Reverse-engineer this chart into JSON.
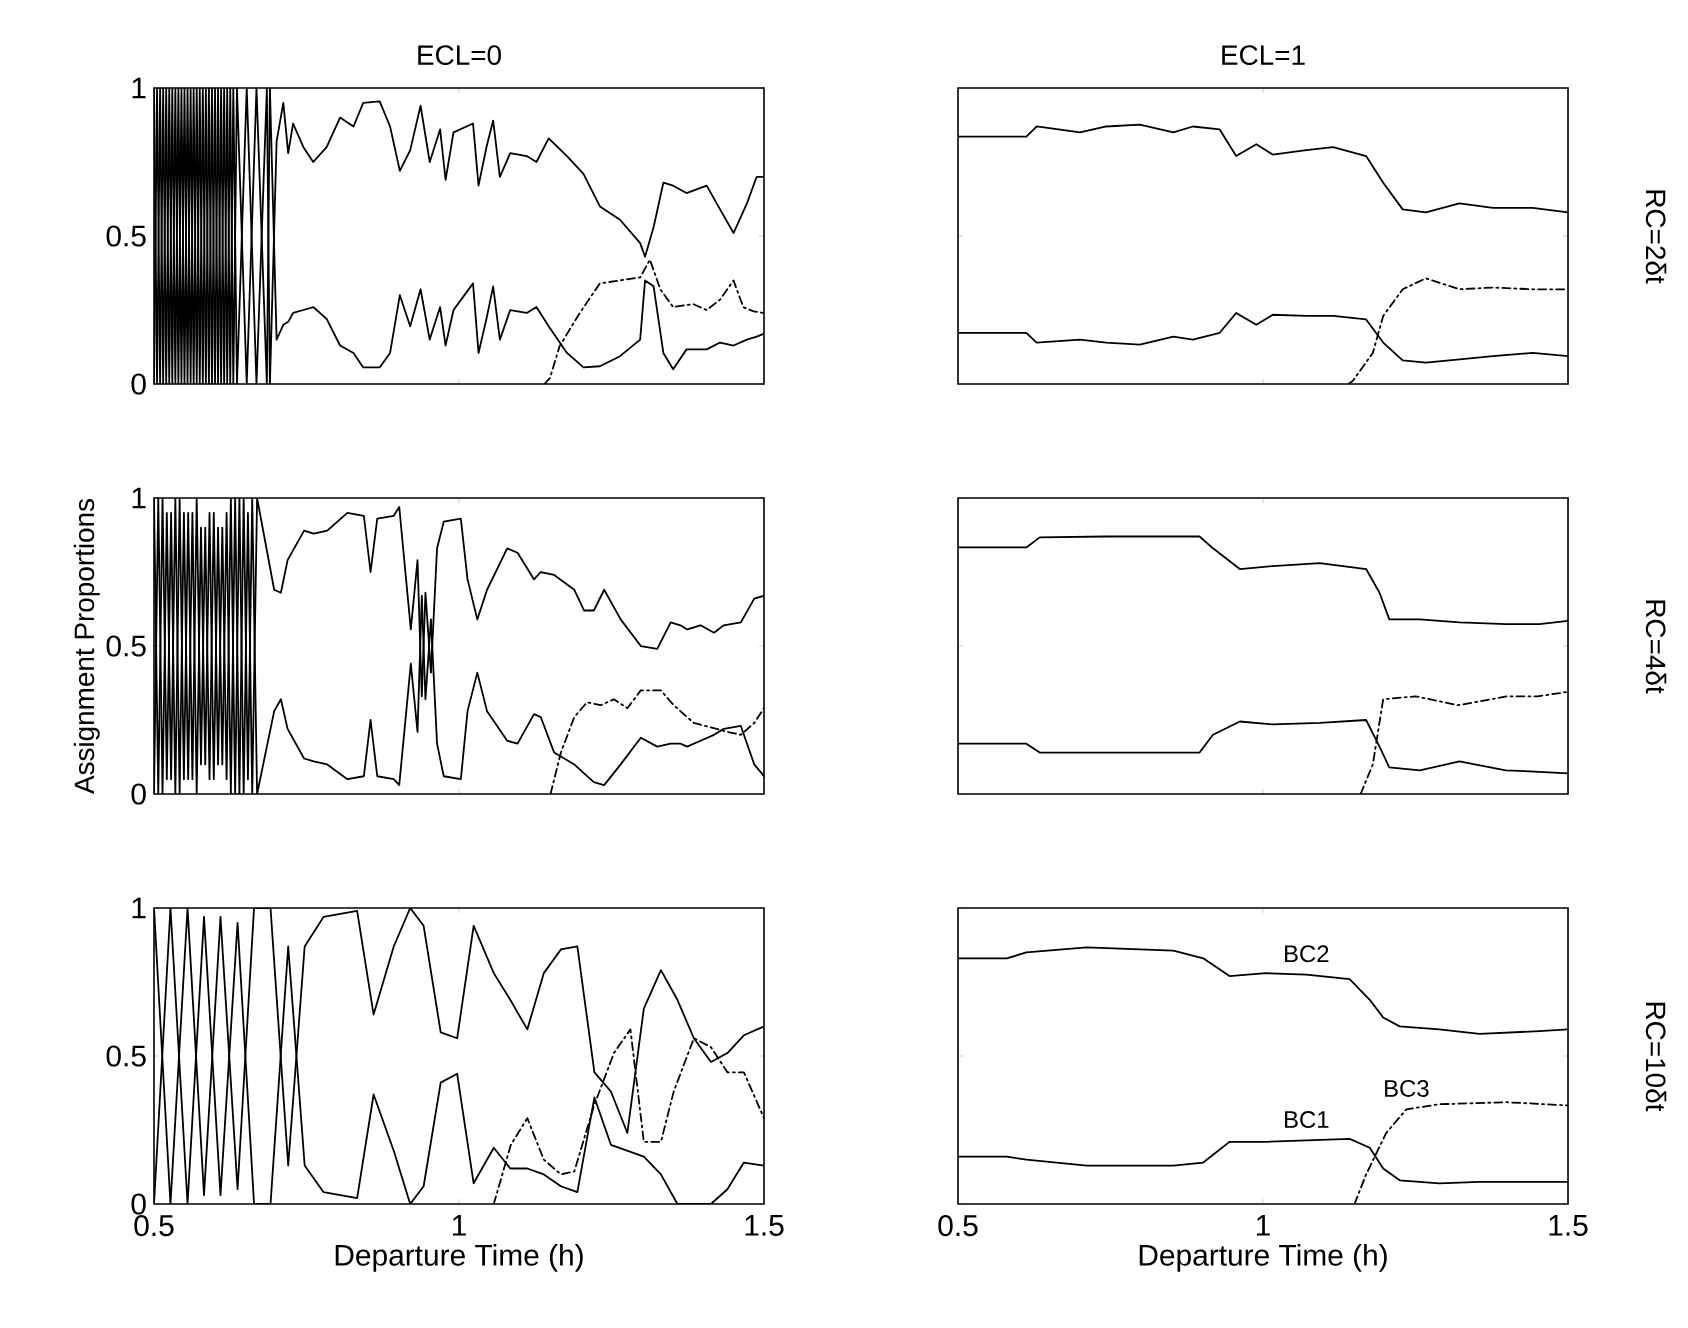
{
  "chart_data": [
    {
      "type": "line",
      "title": "ECL=0",
      "xlim": [
        0.5,
        1.5
      ],
      "ylim": [
        0,
        1
      ],
      "xticks": [
        0.5,
        1,
        1.5
      ],
      "yticks": [
        0,
        0.5,
        1
      ],
      "tick_labels": "y",
      "series": [
        {
          "color": "#000000",
          "line_style": "solid",
          "x": [
            0.5,
            0.505,
            0.51,
            0.515,
            0.52,
            0.525,
            0.53,
            0.535,
            0.54,
            0.545,
            0.55,
            0.555,
            0.56,
            0.565,
            0.57,
            0.575,
            0.58,
            0.585,
            0.59,
            0.595,
            0.6,
            0.605,
            0.61,
            0.615,
            0.62,
            0.625,
            0.63,
            0.636,
            0.652,
            0.668,
            0.685,
            0.69,
            0.701,
            0.712,
            0.72,
            0.728,
            0.745,
            0.761,
            0.783,
            0.805,
            0.827,
            0.843,
            0.87,
            0.887,
            0.903,
            0.92,
            0.937,
            0.952,
            0.969,
            0.978,
            0.991,
            1.023,
            1.032,
            1.045,
            1.056,
            1.067,
            1.084,
            1.111,
            1.127,
            1.147,
            1.177,
            1.204,
            1.231,
            1.264,
            1.297,
            1.305,
            1.319,
            1.335,
            1.351,
            1.373,
            1.406,
            1.428,
            1.45,
            1.472,
            1.488,
            1.5
          ],
          "values": [
            0,
            1,
            0,
            1,
            0,
            1,
            0,
            1,
            0,
            1,
            0,
            1,
            0,
            1,
            0,
            1,
            0,
            1,
            0,
            1,
            0,
            1,
            0,
            1,
            0,
            1,
            0,
            1,
            0,
            1,
            0,
            1,
            0.15,
            0.2,
            0.21,
            0.24,
            0.25,
            0.26,
            0.22,
            0.13,
            0.105,
            0.056,
            0.056,
            0.105,
            0.3,
            0.195,
            0.32,
            0.15,
            0.26,
            0.13,
            0.25,
            0.34,
            0.105,
            0.22,
            0.33,
            0.15,
            0.25,
            0.24,
            0.26,
            0.195,
            0.105,
            0.056,
            0.06,
            0.094,
            0.15,
            0.35,
            0.33,
            0.105,
            0.05,
            0.117,
            0.117,
            0.14,
            0.13,
            0.15,
            0.16,
            0.17
          ]
        },
        {
          "color": "#000000",
          "line_style": "solid",
          "x": [
            0.5,
            0.505,
            0.51,
            0.515,
            0.52,
            0.525,
            0.53,
            0.535,
            0.54,
            0.545,
            0.55,
            0.555,
            0.56,
            0.565,
            0.57,
            0.575,
            0.58,
            0.585,
            0.59,
            0.595,
            0.6,
            0.605,
            0.61,
            0.615,
            0.62,
            0.625,
            0.63,
            0.636,
            0.652,
            0.668,
            0.685,
            0.69,
            0.701,
            0.712,
            0.72,
            0.728,
            0.745,
            0.761,
            0.783,
            0.805,
            0.827,
            0.843,
            0.87,
            0.887,
            0.903,
            0.92,
            0.937,
            0.952,
            0.969,
            0.978,
            0.991,
            1.023,
            1.032,
            1.045,
            1.056,
            1.067,
            1.084,
            1.111,
            1.127,
            1.147,
            1.177,
            1.204,
            1.231,
            1.264,
            1.297,
            1.305,
            1.319,
            1.335,
            1.351,
            1.373,
            1.406,
            1.428,
            1.45,
            1.472,
            1.488,
            1.5
          ],
          "values": [
            1,
            0,
            1,
            0,
            1,
            0,
            1,
            0,
            1,
            0,
            1,
            0,
            1,
            0,
            1,
            0,
            1,
            0,
            1,
            0,
            1,
            0,
            1,
            0,
            1,
            0,
            1,
            0,
            1,
            0,
            1,
            0,
            0.82,
            0.95,
            0.78,
            0.88,
            0.8,
            0.75,
            0.8,
            0.9,
            0.87,
            0.95,
            0.955,
            0.87,
            0.72,
            0.79,
            0.94,
            0.75,
            0.86,
            0.69,
            0.85,
            0.88,
            0.67,
            0.8,
            0.89,
            0.7,
            0.78,
            0.77,
            0.75,
            0.83,
            0.77,
            0.71,
            0.6,
            0.555,
            0.476,
            0.43,
            0.53,
            0.68,
            0.67,
            0.645,
            0.67,
            0.59,
            0.51,
            0.61,
            0.7,
            0.7
          ]
        },
        {
          "color": "#000000",
          "line_style": "dashdotted",
          "x": [
            1.14,
            1.149,
            1.165,
            1.198,
            1.231,
            1.264,
            1.297,
            1.313,
            1.33,
            1.351,
            1.384,
            1.406,
            1.428,
            1.45,
            1.466,
            1.483,
            1.5
          ],
          "values": [
            0,
            0.02,
            0.128,
            0.24,
            0.34,
            0.35,
            0.36,
            0.42,
            0.32,
            0.26,
            0.27,
            0.25,
            0.285,
            0.35,
            0.26,
            0.245,
            0.24
          ]
        }
      ]
    },
    {
      "type": "line",
      "title": "ECL=1",
      "y2label": "RC=2δt",
      "xlim": [
        0.5,
        1.5
      ],
      "ylim": [
        0,
        1
      ],
      "xticks": [
        0.5,
        1,
        1.5
      ],
      "yticks": [
        0,
        0.5,
        1
      ],
      "tick_labels": false,
      "series": [
        {
          "color": "#000000",
          "line_style": "solid",
          "x": [
            0.5,
            0.612,
            0.629,
            0.7,
            0.743,
            0.798,
            0.853,
            0.885,
            0.929,
            0.956,
            0.989,
            1.016,
            1.071,
            1.115,
            1.169,
            1.197,
            1.229,
            1.267,
            1.322,
            1.377,
            1.442,
            1.5
          ],
          "values": [
            0.173,
            0.173,
            0.14,
            0.15,
            0.14,
            0.133,
            0.16,
            0.15,
            0.173,
            0.24,
            0.2,
            0.234,
            0.23,
            0.23,
            0.218,
            0.14,
            0.08,
            0.072,
            0.083,
            0.094,
            0.105,
            0.094
          ]
        },
        {
          "color": "#000000",
          "line_style": "solid",
          "x": [
            0.5,
            0.612,
            0.629,
            0.7,
            0.743,
            0.798,
            0.853,
            0.885,
            0.929,
            0.956,
            0.989,
            1.016,
            1.071,
            1.115,
            1.169,
            1.197,
            1.229,
            1.267,
            1.322,
            1.377,
            1.442,
            1.5
          ],
          "values": [
            0.836,
            0.836,
            0.87,
            0.85,
            0.87,
            0.876,
            0.85,
            0.87,
            0.86,
            0.77,
            0.81,
            0.775,
            0.79,
            0.8,
            0.77,
            0.68,
            0.59,
            0.58,
            0.61,
            0.595,
            0.595,
            0.58
          ]
        },
        {
          "color": "#000000",
          "line_style": "dashdotted",
          "x": [
            1.14,
            1.147,
            1.18,
            1.197,
            1.229,
            1.267,
            1.322,
            1.377,
            1.442,
            1.5
          ],
          "values": [
            0,
            0.01,
            0.105,
            0.23,
            0.32,
            0.357,
            0.32,
            0.326,
            0.32,
            0.32
          ]
        }
      ]
    },
    {
      "type": "line",
      "ylabel": "Assignment Proportions",
      "xlim": [
        0.5,
        1.5
      ],
      "ylim": [
        0,
        1
      ],
      "xticks": [
        0.5,
        1,
        1.5
      ],
      "yticks": [
        0,
        0.5,
        1
      ],
      "tick_labels": "y",
      "series": [
        {
          "color": "#000000",
          "line_style": "solid",
          "x": [
            0.5,
            0.507,
            0.514,
            0.521,
            0.528,
            0.535,
            0.542,
            0.549,
            0.556,
            0.563,
            0.57,
            0.577,
            0.584,
            0.591,
            0.598,
            0.605,
            0.612,
            0.619,
            0.626,
            0.633,
            0.64,
            0.647,
            0.654,
            0.661,
            0.669,
            0.697,
            0.708,
            0.719,
            0.746,
            0.762,
            0.784,
            0.817,
            0.844,
            0.855,
            0.866,
            0.893,
            0.902,
            0.921,
            0.932,
            0.939,
            0.945,
            0.954,
            0.964,
            0.975,
            1.003,
            1.014,
            1.03,
            1.046,
            1.079,
            1.096,
            1.123,
            1.134,
            1.156,
            1.189,
            1.205,
            1.221,
            1.238,
            1.265,
            1.298,
            1.325,
            1.347,
            1.363,
            1.374,
            1.396,
            1.418,
            1.434,
            1.462,
            1.484,
            1.5
          ],
          "values": [
            0,
            1,
            0,
            0.95,
            0.05,
            1,
            0,
            0.95,
            0.05,
            0.95,
            0,
            0.9,
            0.1,
            0.95,
            0.05,
            0.9,
            0.1,
            0.95,
            0,
            1,
            0,
            1,
            0.05,
            1,
            0,
            0.28,
            0.32,
            0.22,
            0.12,
            0.11,
            0.1,
            0.05,
            0.06,
            0.25,
            0.06,
            0.05,
            0.03,
            0.44,
            0.21,
            0.67,
            0.32,
            0.59,
            0.17,
            0.06,
            0.05,
            0.28,
            0.41,
            0.28,
            0.18,
            0.17,
            0.27,
            0.26,
            0.14,
            0.1,
            0.07,
            0.04,
            0.03,
            0.1,
            0.19,
            0.16,
            0.17,
            0.17,
            0.16,
            0.18,
            0.2,
            0.22,
            0.23,
            0.1,
            0.06
          ]
        },
        {
          "color": "#000000",
          "line_style": "solid",
          "x": [
            0.5,
            0.507,
            0.514,
            0.521,
            0.528,
            0.535,
            0.542,
            0.549,
            0.556,
            0.563,
            0.57,
            0.577,
            0.584,
            0.591,
            0.598,
            0.605,
            0.612,
            0.619,
            0.626,
            0.633,
            0.64,
            0.647,
            0.654,
            0.661,
            0.669,
            0.697,
            0.708,
            0.719,
            0.746,
            0.762,
            0.784,
            0.817,
            0.844,
            0.855,
            0.866,
            0.893,
            0.902,
            0.921,
            0.932,
            0.939,
            0.945,
            0.954,
            0.964,
            0.975,
            1.003,
            1.014,
            1.03,
            1.046,
            1.079,
            1.096,
            1.123,
            1.134,
            1.156,
            1.189,
            1.205,
            1.221,
            1.238,
            1.265,
            1.298,
            1.325,
            1.347,
            1.363,
            1.374,
            1.396,
            1.418,
            1.434,
            1.462,
            1.484,
            1.5
          ],
          "values": [
            1,
            0,
            1,
            0.05,
            0.95,
            0,
            1,
            0.05,
            0.95,
            0.05,
            1,
            0.1,
            0.9,
            0.05,
            0.95,
            0.1,
            0.9,
            0.05,
            1,
            0,
            1,
            0,
            0.95,
            0,
            1,
            0.69,
            0.68,
            0.79,
            0.89,
            0.88,
            0.89,
            0.95,
            0.94,
            0.75,
            0.93,
            0.94,
            0.97,
            0.556,
            0.79,
            0.33,
            0.68,
            0.41,
            0.83,
            0.92,
            0.93,
            0.725,
            0.59,
            0.69,
            0.83,
            0.815,
            0.725,
            0.75,
            0.74,
            0.69,
            0.62,
            0.62,
            0.69,
            0.59,
            0.5,
            0.49,
            0.58,
            0.57,
            0.556,
            0.57,
            0.545,
            0.57,
            0.58,
            0.66,
            0.67
          ]
        },
        {
          "color": "#000000",
          "line_style": "dashdotted",
          "x": [
            1.15,
            1.167,
            1.189,
            1.21,
            1.232,
            1.254,
            1.276,
            1.298,
            1.331,
            1.352,
            1.385,
            1.44,
            1.462,
            1.484,
            1.5
          ],
          "values": [
            0,
            0.14,
            0.26,
            0.31,
            0.3,
            0.32,
            0.29,
            0.35,
            0.35,
            0.3,
            0.24,
            0.21,
            0.2,
            0.24,
            0.29
          ]
        }
      ]
    },
    {
      "type": "line",
      "y2label": "RC=4δt",
      "xlim": [
        0.5,
        1.5
      ],
      "ylim": [
        0,
        1
      ],
      "xticks": [
        0.5,
        1,
        1.5
      ],
      "yticks": [
        0,
        0.5,
        1
      ],
      "tick_labels": false,
      "series": [
        {
          "color": "#000000",
          "line_style": "solid",
          "x": [
            0.5,
            0.612,
            0.634,
            0.743,
            0.896,
            0.918,
            0.962,
            1.016,
            1.093,
            1.169,
            1.191,
            1.207,
            1.257,
            1.322,
            1.398,
            1.453,
            1.5
          ],
          "values": [
            0.17,
            0.17,
            0.14,
            0.14,
            0.14,
            0.2,
            0.245,
            0.235,
            0.24,
            0.25,
            0.16,
            0.09,
            0.08,
            0.11,
            0.08,
            0.075,
            0.07
          ]
        },
        {
          "color": "#000000",
          "line_style": "solid",
          "x": [
            0.5,
            0.612,
            0.634,
            0.743,
            0.896,
            0.918,
            0.962,
            1.016,
            1.093,
            1.169,
            1.191,
            1.207,
            1.257,
            1.322,
            1.398,
            1.453,
            1.5
          ],
          "values": [
            0.833,
            0.833,
            0.867,
            0.87,
            0.87,
            0.83,
            0.76,
            0.77,
            0.78,
            0.76,
            0.68,
            0.59,
            0.59,
            0.58,
            0.574,
            0.574,
            0.585
          ]
        },
        {
          "color": "#000000",
          "line_style": "dashdotted",
          "x": [
            1.16,
            1.18,
            1.197,
            1.25,
            1.32,
            1.4,
            1.45,
            1.5
          ],
          "values": [
            0,
            0.1,
            0.32,
            0.33,
            0.3,
            0.33,
            0.33,
            0.345
          ]
        }
      ]
    },
    {
      "type": "line",
      "xlabel": "Departure Time (h)",
      "xlim": [
        0.5,
        1.5
      ],
      "ylim": [
        0,
        1
      ],
      "xticks": [
        0.5,
        1,
        1.5
      ],
      "yticks": [
        0,
        0.5,
        1
      ],
      "series": [
        {
          "color": "#000000",
          "line_style": "solid",
          "x": [
            0.5,
            0.527,
            0.555,
            0.582,
            0.609,
            0.637,
            0.664,
            0.691,
            0.72,
            0.747,
            0.778,
            0.833,
            0.86,
            0.893,
            0.92,
            0.942,
            0.97,
            0.997,
            1.024,
            1.057,
            1.084,
            1.112,
            1.139,
            1.167,
            1.194,
            1.222,
            1.249,
            1.276,
            1.303,
            1.331,
            1.358,
            1.385,
            1.413,
            1.44,
            1.467,
            1.5
          ],
          "values": [
            0,
            1,
            0,
            0.97,
            0.03,
            0.95,
            0,
            0,
            0.87,
            0.13,
            0.04,
            0.02,
            0.37,
            0.18,
            0,
            0.06,
            0.41,
            0.44,
            0.07,
            0.19,
            0.12,
            0.12,
            0.1,
            0.06,
            0.04,
            0.36,
            0.2,
            0.18,
            0.16,
            0.1,
            0,
            0,
            0,
            0.05,
            0.14,
            0.13
          ]
        },
        {
          "color": "#000000",
          "line_style": "solid",
          "x": [
            0.5,
            0.527,
            0.555,
            0.582,
            0.609,
            0.637,
            0.664,
            0.691,
            0.72,
            0.747,
            0.778,
            0.833,
            0.86,
            0.893,
            0.92,
            0.942,
            0.97,
            0.997,
            1.024,
            1.057,
            1.084,
            1.112,
            1.139,
            1.167,
            1.194,
            1.222,
            1.249,
            1.276,
            1.303,
            1.331,
            1.358,
            1.385,
            1.413,
            1.44,
            1.467,
            1.5
          ],
          "values": [
            1,
            0,
            1,
            0.03,
            0.97,
            0.05,
            1,
            1,
            0.13,
            0.87,
            0.97,
            0.99,
            0.64,
            0.87,
            1,
            0.94,
            0.58,
            0.56,
            0.94,
            0.78,
            0.69,
            0.59,
            0.78,
            0.86,
            0.87,
            0.445,
            0.38,
            0.24,
            0.66,
            0.79,
            0.69,
            0.56,
            0.48,
            0.51,
            0.57,
            0.6
          ]
        },
        {
          "color": "#000000",
          "line_style": "dashdotted",
          "x": [
            1.057,
            1.085,
            1.112,
            1.139,
            1.167,
            1.189,
            1.221,
            1.254,
            1.281,
            1.303,
            1.331,
            1.352,
            1.385,
            1.413,
            1.44,
            1.467,
            1.5
          ],
          "values": [
            0,
            0.2,
            0.29,
            0.15,
            0.1,
            0.11,
            0.33,
            0.51,
            0.59,
            0.21,
            0.21,
            0.38,
            0.56,
            0.53,
            0.445,
            0.445,
            0.29
          ]
        }
      ]
    },
    {
      "type": "line",
      "xlabel": "Departure Time (h)",
      "y2label": "RC=10δt",
      "xlim": [
        0.5,
        1.5
      ],
      "ylim": [
        0,
        1
      ],
      "xticks": [
        0.5,
        1,
        1.5
      ],
      "yticks": [
        0,
        0.5,
        1
      ],
      "tick_labels": "x",
      "series": [
        {
          "name": "BC1",
          "color": "#000000",
          "line_style": "solid",
          "x": [
            0.5,
            0.58,
            0.612,
            0.711,
            0.853,
            0.902,
            0.945,
            1.005,
            1.071,
            1.142,
            1.175,
            1.197,
            1.224,
            1.289,
            1.355,
            1.453,
            1.5
          ],
          "values": [
            0.16,
            0.16,
            0.15,
            0.13,
            0.13,
            0.14,
            0.21,
            0.21,
            0.215,
            0.22,
            0.19,
            0.12,
            0.08,
            0.07,
            0.075,
            0.075,
            0.075
          ]
        },
        {
          "name": "BC2",
          "color": "#000000",
          "line_style": "solid",
          "x": [
            0.5,
            0.58,
            0.612,
            0.711,
            0.853,
            0.902,
            0.945,
            1.005,
            1.071,
            1.142,
            1.175,
            1.197,
            1.224,
            1.289,
            1.355,
            1.453,
            1.5
          ],
          "values": [
            0.83,
            0.83,
            0.85,
            0.867,
            0.856,
            0.83,
            0.77,
            0.78,
            0.775,
            0.76,
            0.69,
            0.63,
            0.6,
            0.59,
            0.575,
            0.584,
            0.59
          ]
        },
        {
          "name": "BC3",
          "color": "#000000",
          "line_style": "dashdotted",
          "x": [
            1.15,
            1.169,
            1.202,
            1.235,
            1.289,
            1.398,
            1.5
          ],
          "values": [
            0,
            0.1,
            0.24,
            0.32,
            0.337,
            0.344,
            0.333
          ]
        }
      ]
    }
  ]
}
